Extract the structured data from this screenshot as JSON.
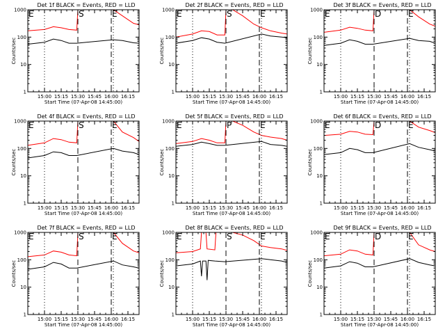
{
  "figure": {
    "background": "#ffffff",
    "axis_color": "#000000"
  },
  "chart_data": [
    {
      "type": "line",
      "title": "Det 1f BLACK = Events, RED = LLD",
      "xlabel": "Start Time (07-Apr-08 14:45:00)",
      "ylabel": "Counts/sec",
      "yscale": "log",
      "ylim": [
        1,
        1000
      ],
      "yticks": [
        "1",
        "10",
        "100",
        "1000"
      ],
      "xticks": [
        "15:00",
        "15:15",
        "15:30",
        "15:45",
        "16:00",
        "16:15"
      ],
      "markers": [
        {
          "label": "E",
          "time": "14:45"
        },
        {
          "label": "S",
          "time": "15:30"
        },
        {
          "label": "E",
          "time": "16:00"
        }
      ],
      "series": [
        {
          "color": "#ff0000",
          "x": [
            "14:45",
            "15:00",
            "15:08",
            "15:15",
            "15:22",
            "15:29",
            "15:30",
            "16:02",
            "16:10",
            "16:20",
            "16:25"
          ],
          "values": [
            170,
            190,
            240,
            220,
            190,
            180,
            1000,
            1000,
            600,
            320,
            280
          ]
        },
        {
          "color": "#000000",
          "x": [
            "14:45",
            "15:00",
            "15:08",
            "15:15",
            "15:22",
            "15:29",
            "16:02",
            "16:10",
            "16:20",
            "16:25"
          ],
          "values": [
            55,
            65,
            85,
            75,
            60,
            60,
            80,
            75,
            62,
            60
          ]
        }
      ]
    },
    {
      "type": "line",
      "title": "Det 2f BLACK = Events, RED = LLD",
      "xlabel": "Start Time (07-Apr-08 14:45:00)",
      "ylabel": "Counts/sec",
      "yscale": "log",
      "ylim": [
        1,
        1000
      ],
      "yticks": [
        "1",
        "10",
        "100",
        "1000"
      ],
      "xticks": [
        "15:00",
        "15:15",
        "15:30",
        "15:45",
        "16:00",
        "16:15"
      ],
      "markers": [
        {
          "label": "E",
          "time": "14:45"
        },
        {
          "label": "S",
          "time": "15:30"
        },
        {
          "label": "E",
          "time": "16:00"
        }
      ],
      "series": [
        {
          "color": "#ff0000",
          "x": [
            "14:45",
            "15:00",
            "15:08",
            "15:15",
            "15:22",
            "15:29",
            "15:30",
            "15:36",
            "15:45",
            "15:55",
            "16:02",
            "16:10",
            "16:20",
            "16:25"
          ],
          "values": [
            100,
            130,
            170,
            160,
            120,
            120,
            1000,
            1000,
            600,
            300,
            220,
            170,
            140,
            130
          ]
        },
        {
          "color": "#000000",
          "x": [
            "14:45",
            "15:00",
            "15:08",
            "15:15",
            "15:22",
            "15:29",
            "16:02",
            "16:10",
            "16:20",
            "16:25"
          ],
          "values": [
            60,
            75,
            95,
            85,
            65,
            60,
            130,
            110,
            100,
            95
          ]
        }
      ]
    },
    {
      "type": "line",
      "title": "Det 3f BLACK = Events, RED = LLD",
      "xlabel": "Start Time (07-Apr-08 14:45:00)",
      "ylabel": "Counts/sec",
      "yscale": "log",
      "ylim": [
        1,
        1000
      ],
      "yticks": [
        "1",
        "10",
        "100",
        "1000"
      ],
      "xticks": [
        "15:00",
        "15:15",
        "15:30",
        "15:45",
        "16:00",
        "16:15"
      ],
      "markers": [
        {
          "label": "E",
          "time": "14:45"
        },
        {
          "label": "D",
          "time": "15:30"
        },
        {
          "label": "E",
          "time": "16:00"
        }
      ],
      "series": [
        {
          "color": "#ff0000",
          "x": [
            "14:45",
            "15:00",
            "15:08",
            "15:15",
            "15:22",
            "15:29",
            "15:30",
            "16:02",
            "16:10",
            "16:20",
            "16:25"
          ],
          "values": [
            150,
            180,
            230,
            210,
            180,
            170,
            1000,
            1000,
            550,
            300,
            250
          ]
        },
        {
          "color": "#000000",
          "x": [
            "14:45",
            "15:00",
            "15:08",
            "15:15",
            "15:22",
            "15:29",
            "16:02",
            "16:10",
            "16:20",
            "16:25"
          ],
          "values": [
            50,
            60,
            80,
            70,
            55,
            55,
            90,
            75,
            70,
            60
          ]
        }
      ]
    },
    {
      "type": "line",
      "title": "Det 4f BLACK = Events, RED = LLD",
      "xlabel": "Start Time (07-Apr-08 14:45:00)",
      "ylabel": "Counts/sec",
      "yscale": "log",
      "ylim": [
        1,
        1000
      ],
      "yticks": [
        "1",
        "10",
        "100",
        "1000"
      ],
      "xticks": [
        "15:00",
        "15:15",
        "15:30",
        "15:45",
        "16:00",
        "16:15"
      ],
      "markers": [
        {
          "label": "E",
          "time": "14:45"
        },
        {
          "label": "S",
          "time": "15:30"
        },
        {
          "label": "E",
          "time": "16:00"
        }
      ],
      "series": [
        {
          "color": "#ff0000",
          "x": [
            "14:45",
            "15:00",
            "15:08",
            "15:15",
            "15:22",
            "15:29",
            "15:30",
            "16:02",
            "16:10",
            "16:20",
            "16:25"
          ],
          "values": [
            130,
            160,
            230,
            210,
            170,
            160,
            1000,
            1000,
            400,
            250,
            180
          ]
        },
        {
          "color": "#000000",
          "x": [
            "14:45",
            "15:00",
            "15:08",
            "15:15",
            "15:22",
            "15:29",
            "16:02",
            "16:10",
            "16:20",
            "16:25"
          ],
          "values": [
            45,
            55,
            75,
            70,
            55,
            55,
            100,
            80,
            70,
            60
          ]
        }
      ]
    },
    {
      "type": "line",
      "title": "Det 5f BLACK = Events, RED = LLD",
      "xlabel": "Start Time (07-Apr-08 14:45:00)",
      "ylabel": "Counts/sec",
      "yscale": "log",
      "ylim": [
        1,
        1000
      ],
      "yticks": [
        "1",
        "10",
        "100",
        "1000"
      ],
      "xticks": [
        "15:00",
        "15:15",
        "15:30",
        "15:45",
        "16:00",
        "16:15"
      ],
      "markers": [
        {
          "label": "E",
          "time": "14:45"
        },
        {
          "label": "P",
          "time": "15:30"
        },
        {
          "label": "E",
          "time": "16:00"
        }
      ],
      "series": [
        {
          "color": "#ff0000",
          "x": [
            "14:45",
            "15:00",
            "15:08",
            "15:15",
            "15:22",
            "15:29",
            "15:30",
            "15:36",
            "15:45",
            "15:55",
            "16:02",
            "16:10",
            "16:20",
            "16:25"
          ],
          "values": [
            150,
            180,
            230,
            200,
            160,
            160,
            1000,
            1000,
            700,
            400,
            300,
            260,
            230,
            200
          ]
        },
        {
          "color": "#000000",
          "x": [
            "14:45",
            "15:00",
            "15:08",
            "15:15",
            "15:22",
            "15:29",
            "16:02",
            "16:10",
            "16:20",
            "16:25"
          ],
          "values": [
            120,
            140,
            170,
            150,
            130,
            130,
            180,
            140,
            130,
            120
          ]
        }
      ]
    },
    {
      "type": "line",
      "title": "Det 6f BLACK = Events, RED = LLD",
      "xlabel": "Start Time (07-Apr-08 14:45:00)",
      "ylabel": "Counts/sec",
      "yscale": "log",
      "ylim": [
        1,
        1000
      ],
      "yticks": [
        "1",
        "10",
        "100",
        "1000"
      ],
      "xticks": [
        "15:00",
        "15:15",
        "15:30",
        "15:45",
        "16:00",
        "16:15"
      ],
      "markers": [
        {
          "label": "E",
          "time": "14:45"
        },
        {
          "label": "D",
          "time": "15:30"
        },
        {
          "label": "E",
          "time": "16:00"
        }
      ],
      "series": [
        {
          "color": "#ff0000",
          "x": [
            "14:45",
            "15:00",
            "15:08",
            "15:15",
            "15:22",
            "15:29",
            "15:30",
            "16:02",
            "16:10",
            "16:20",
            "16:25"
          ],
          "values": [
            300,
            330,
            420,
            400,
            330,
            320,
            1000,
            1000,
            600,
            450,
            380
          ]
        },
        {
          "color": "#000000",
          "x": [
            "14:45",
            "15:00",
            "15:08",
            "15:15",
            "15:22",
            "15:29",
            "16:02",
            "16:10",
            "16:20",
            "16:25"
          ],
          "values": [
            60,
            70,
            100,
            90,
            70,
            70,
            150,
            110,
            90,
            80
          ]
        }
      ]
    },
    {
      "type": "line",
      "title": "Det 7f BLACK = Events, RED = LLD",
      "xlabel": "Start Time (07-Apr-08 14:45:00)",
      "ylabel": "Counts/sec",
      "yscale": "log",
      "ylim": [
        1,
        1000
      ],
      "yticks": [
        "1",
        "10",
        "100",
        "1000"
      ],
      "xticks": [
        "15:00",
        "15:15",
        "15:30",
        "15:45",
        "16:00",
        "16:15"
      ],
      "markers": [
        {
          "label": "E",
          "time": "14:45"
        },
        {
          "label": "S",
          "time": "15:30"
        },
        {
          "label": "E",
          "time": "16:00"
        }
      ],
      "series": [
        {
          "color": "#ff0000",
          "x": [
            "14:45",
            "15:00",
            "15:08",
            "15:15",
            "15:22",
            "15:29",
            "15:30",
            "16:02",
            "16:10",
            "16:20",
            "16:25"
          ],
          "values": [
            130,
            150,
            210,
            190,
            150,
            140,
            1000,
            1000,
            400,
            210,
            180
          ]
        },
        {
          "color": "#000000",
          "x": [
            "14:45",
            "15:00",
            "15:08",
            "15:15",
            "15:22",
            "15:29",
            "16:02",
            "16:10",
            "16:20",
            "16:25"
          ],
          "values": [
            45,
            55,
            80,
            70,
            50,
            50,
            90,
            65,
            55,
            50
          ]
        }
      ]
    },
    {
      "type": "line",
      "title": "Det 8f BLACK = Events, RED = LLD",
      "xlabel": "Start Time (07-Apr-08 14:45:00)",
      "ylabel": "Counts/sec",
      "yscale": "log",
      "ylim": [
        1,
        1000
      ],
      "yticks": [
        "1",
        "10",
        "100",
        "1000"
      ],
      "xticks": [
        "15:00",
        "15:15",
        "15:30",
        "15:45",
        "16:00",
        "16:15"
      ],
      "markers": [
        {
          "label": "E",
          "time": "14:45"
        },
        {
          "label": "S",
          "time": "15:30"
        },
        {
          "label": "E",
          "time": "16:00"
        }
      ],
      "series": [
        {
          "color": "#ff0000",
          "x": [
            "14:45",
            "15:00",
            "15:07",
            "15:08",
            "15:12",
            "15:13",
            "15:20",
            "15:21",
            "15:29",
            "15:30",
            "15:36",
            "15:45",
            "15:55",
            "16:02",
            "16:10",
            "16:20",
            "16:25"
          ],
          "values": [
            180,
            200,
            250,
            1000,
            1000,
            250,
            230,
            1000,
            1000,
            1000,
            1000,
            800,
            500,
            320,
            280,
            250,
            220
          ]
        },
        {
          "color": "#000000",
          "x": [
            "14:45",
            "15:00",
            "15:07",
            "15:08",
            "15:09",
            "15:12",
            "15:13",
            "15:14",
            "15:20",
            "15:29",
            "16:02",
            "16:10",
            "16:20",
            "16:25"
          ],
          "values": [
            60,
            70,
            90,
            25,
            90,
            90,
            18,
            95,
            90,
            85,
            110,
            100,
            90,
            80
          ]
        }
      ]
    },
    {
      "type": "line",
      "title": "Det 9f BLACK = Events, RED = LLD",
      "xlabel": "Start Time (07-Apr-08 14:45:00)",
      "ylabel": "Counts/sec",
      "yscale": "log",
      "ylim": [
        1,
        1000
      ],
      "yticks": [
        "1",
        "10",
        "100",
        "1000"
      ],
      "xticks": [
        "15:00",
        "15:15",
        "15:30",
        "15:45",
        "16:00",
        "16:15"
      ],
      "markers": [
        {
          "label": "E",
          "time": "14:45"
        },
        {
          "label": "D",
          "time": "15:30"
        },
        {
          "label": "E",
          "time": "16:00"
        }
      ],
      "series": [
        {
          "color": "#ff0000",
          "x": [
            "14:45",
            "15:00",
            "15:08",
            "15:15",
            "15:22",
            "15:29",
            "15:30",
            "16:02",
            "16:10",
            "16:20",
            "16:25"
          ],
          "values": [
            140,
            160,
            230,
            210,
            160,
            150,
            1000,
            1000,
            350,
            230,
            200
          ]
        },
        {
          "color": "#000000",
          "x": [
            "14:45",
            "15:00",
            "15:08",
            "15:15",
            "15:22",
            "15:29",
            "16:02",
            "16:10",
            "16:20",
            "16:25"
          ],
          "values": [
            50,
            60,
            85,
            75,
            55,
            55,
            110,
            80,
            65,
            60
          ]
        }
      ]
    }
  ]
}
